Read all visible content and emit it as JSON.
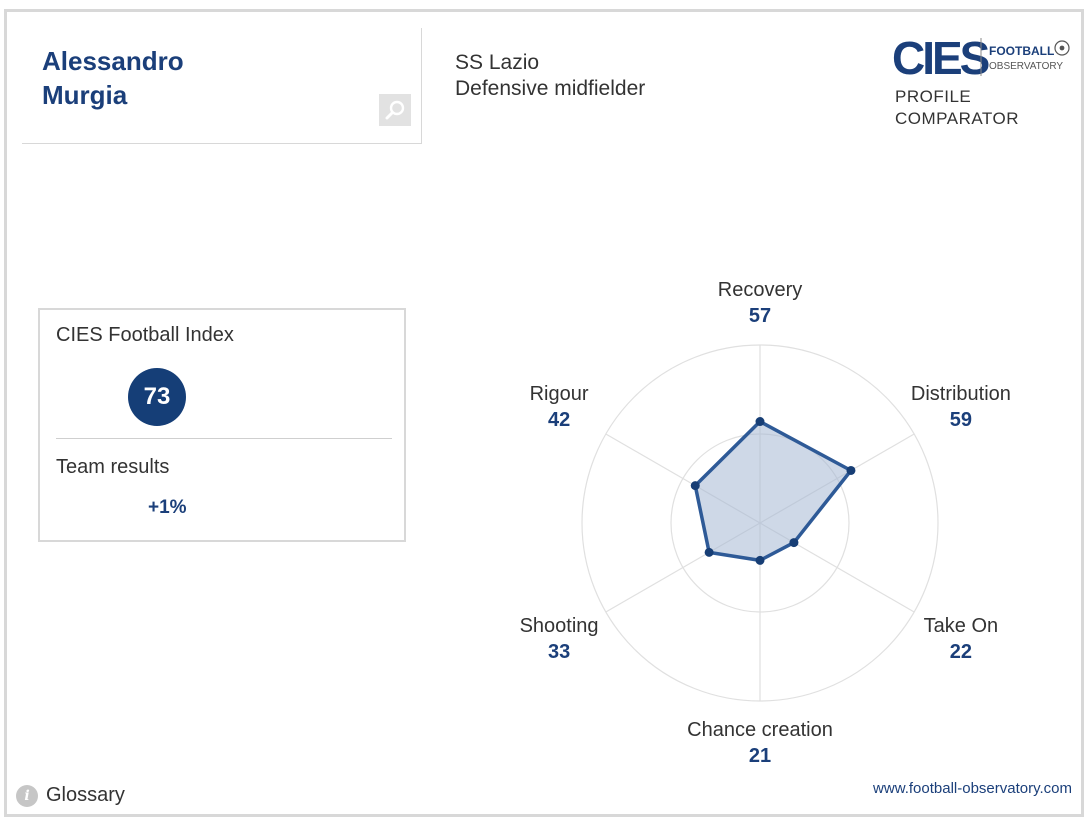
{
  "player": {
    "first_name": "Alessandro",
    "last_name": "Murgia",
    "club": "SS Lazio",
    "position": "Defensive midfielder"
  },
  "logo": {
    "brand": "CIES",
    "football": "FOOTBALL",
    "observatory": "OBSERVATORY",
    "subtitle_line1": "PROFILE",
    "subtitle_line2": "COMPARATOR",
    "brand_color": "#1b3f7a"
  },
  "index_card": {
    "label": "CIES Football Index",
    "value": "73",
    "results_label": "Team results",
    "results_value": "+1%"
  },
  "chart_data": {
    "type": "radar",
    "range": [
      0,
      100
    ],
    "rings": 2,
    "fill_color": "#a5b8d3",
    "line_color": "#2e5a97",
    "axes": [
      {
        "name": "Recovery",
        "value": 57
      },
      {
        "name": "Distribution",
        "value": 59
      },
      {
        "name": "Take On",
        "value": 22
      },
      {
        "name": "Chance creation",
        "value": 21
      },
      {
        "name": "Shooting",
        "value": 33
      },
      {
        "name": "Rigour",
        "value": 42
      }
    ]
  },
  "footer": {
    "glossary_label": "Glossary",
    "website": "www.football-observatory.com"
  },
  "icons": {
    "search": "search-icon",
    "info": "info-icon",
    "ball": "ball-icon"
  }
}
